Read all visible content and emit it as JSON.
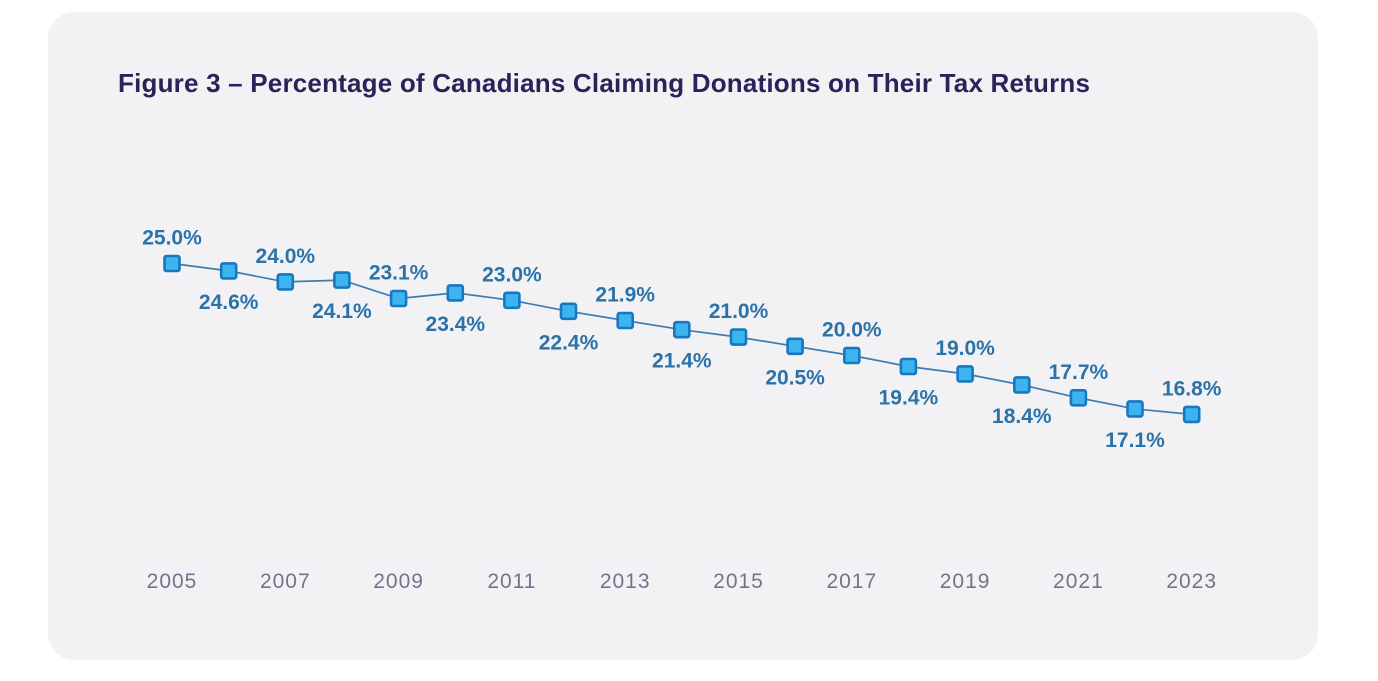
{
  "page": {
    "background": "#FFFFFF"
  },
  "card": {
    "background": "#F2F2F5"
  },
  "figure": {
    "title": "Figure 3 – Percentage of Canadians Claiming Donations on Their Tax Returns"
  },
  "chart_data": {
    "type": "line",
    "title": "Figure 3 – Percentage of Canadians Claiming Donations on Their Tax Returns",
    "x": [
      2005,
      2006,
      2007,
      2008,
      2009,
      2010,
      2011,
      2012,
      2013,
      2014,
      2015,
      2016,
      2017,
      2018,
      2019,
      2020,
      2021,
      2022,
      2023
    ],
    "values": [
      25.0,
      24.6,
      24.0,
      24.1,
      23.1,
      23.4,
      23.0,
      22.4,
      21.9,
      21.4,
      21.0,
      20.5,
      20.0,
      19.4,
      19.0,
      18.4,
      17.7,
      17.1,
      16.8
    ],
    "point_labels": [
      "25.0%",
      "24.6%",
      "24.0%",
      "24.1%",
      "23.1%",
      "23.4%",
      "23.0%",
      "22.4%",
      "21.9%",
      "21.4%",
      "21.0%",
      "20.5%",
      "20.0%",
      "19.4%",
      "19.0%",
      "18.4%",
      "17.7%",
      "17.1%",
      "16.8%"
    ],
    "label_positions": [
      "above",
      "below",
      "above",
      "below",
      "above",
      "below",
      "above",
      "below",
      "above",
      "below",
      "above",
      "below",
      "above",
      "below",
      "above",
      "below",
      "above",
      "below",
      "above"
    ],
    "x_tick_labels": [
      "2005",
      "2007",
      "2009",
      "2011",
      "2013",
      "2015",
      "2017",
      "2019",
      "2021",
      "2023"
    ],
    "x_tick_every": 2,
    "xlabel": "",
    "ylabel": "",
    "ylim": [
      16.0,
      26.0
    ],
    "grid": false,
    "legend": "none",
    "marker": "square",
    "colors": {
      "title": "#2A2359",
      "value_label": "#2B72A8",
      "axis_label": "#73738C",
      "line": "#3E7CB0",
      "marker_fill": "#3DB4F0",
      "marker_stroke": "#1778C0"
    }
  }
}
